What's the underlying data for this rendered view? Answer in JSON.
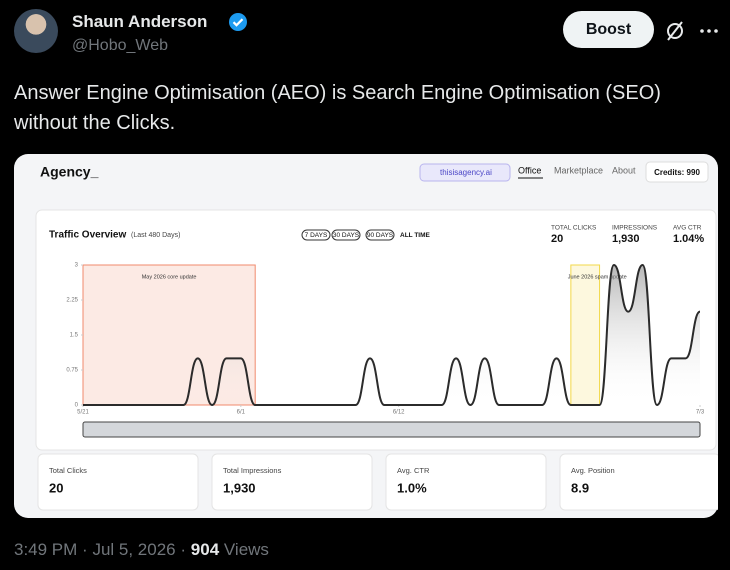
{
  "author": {
    "name": "Shaun Anderson",
    "handle": "@Hobo_Web"
  },
  "actions": {
    "boost": "Boost"
  },
  "tweet": {
    "text": "Answer Engine Optimisation (AEO) is Search Engine Optimisation (SEO) without the Clicks."
  },
  "embed": {
    "brand": "Agency_",
    "domain": "thisisagency.ai",
    "nav": [
      "Office",
      "Marketplace",
      "About"
    ],
    "credits": "Credits: 990",
    "panel_title": "Traffic Overview",
    "panel_subtitle": "(Last 480 Days)",
    "ranges": [
      "7 DAYS",
      "30 DAYS",
      "90 DAYS",
      "ALL TIME"
    ],
    "summary": [
      {
        "label": "TOTAL CLICKS",
        "value": "20"
      },
      {
        "label": "IMPRESSIONS",
        "value": "1,930"
      },
      {
        "label": "AVG CTR",
        "value": "1.04%"
      }
    ],
    "chart": {
      "type": "line",
      "color": "#2b2b2b",
      "values": [
        0,
        0,
        0,
        0,
        0,
        0,
        0,
        0,
        1,
        0,
        1,
        1,
        0,
        0,
        0,
        0,
        0,
        0,
        0,
        0,
        1,
        0,
        0,
        0,
        0,
        0,
        1,
        0,
        1,
        0,
        0,
        0,
        0,
        1,
        0,
        0,
        0,
        3,
        2,
        3,
        0,
        1,
        1,
        2
      ],
      "xlim": [
        0,
        43
      ],
      "ylim": [
        0,
        3
      ],
      "yticks": [
        0,
        0.75,
        1.5,
        2.25,
        3
      ],
      "xticks": [
        {
          "value": 0,
          "label": "5/21"
        },
        {
          "value": 11,
          "label": "6/1"
        },
        {
          "value": 22,
          "label": "6/12"
        },
        {
          "value": 43,
          "label": "7/3"
        }
      ],
      "annotations": [
        {
          "label": "May 2026 core update",
          "x": [
            0,
            12
          ],
          "color": "#f08a6c"
        },
        {
          "label": "June 2026 spam update",
          "x": [
            34,
            36
          ],
          "color": "#f2d84a"
        }
      ]
    },
    "cards": [
      {
        "label": "Total Clicks",
        "value": "20"
      },
      {
        "label": "Total Impressions",
        "value": "1,930"
      },
      {
        "label": "Avg. CTR",
        "value": "1.0%"
      },
      {
        "label": "Avg. Position",
        "value": "8.9"
      }
    ]
  },
  "meta": {
    "time": "3:49 PM",
    "separator": "·",
    "date": "Jul 5, 2026",
    "views": "904",
    "views_label": "Views"
  }
}
